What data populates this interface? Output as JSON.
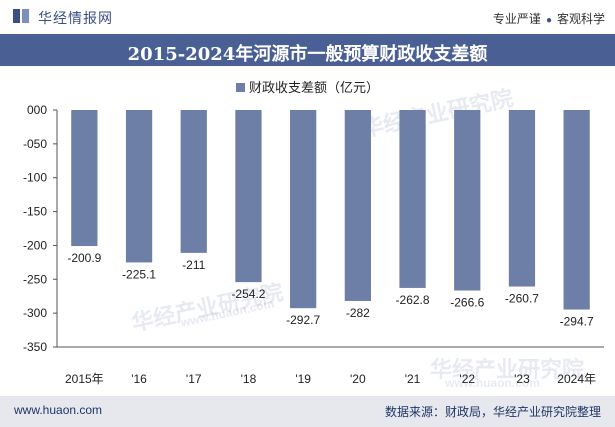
{
  "header": {
    "brand": "华经情报网",
    "slogan_left": "专业严谨",
    "slogan_right": "客观科学"
  },
  "title": "2015-2024年河源市一般预算财政收支差额",
  "legend": "财政收支差额（亿元）",
  "footer": {
    "site": "www.huaon.com",
    "source": "数据来源：财政局，华经产业研究院整理"
  },
  "watermark": {
    "cn": "华经产业研究院",
    "en": "www.huaon.com"
  },
  "colors": {
    "bar": "#6d7fa6",
    "title_bg": "#4a5f94",
    "footer_bg": "#e6e8ee"
  },
  "chart_data": {
    "type": "bar",
    "categories": [
      "2015年",
      "'16",
      "'17",
      "'18",
      "'19",
      "'20",
      "'21",
      "'22",
      "'23",
      "2024年"
    ],
    "series": [
      {
        "name": "财政收支差额（亿元）",
        "values": [
          -200.9,
          -225.1,
          -211,
          -254.2,
          -292.7,
          -282,
          -262.8,
          -266.6,
          -260.7,
          -294.7
        ]
      }
    ],
    "value_labels": [
      "-200.9",
      "-225.1",
      "-211",
      "-254.2",
      "-292.7",
      "-282",
      "-262.8",
      "-266.6",
      "-260.7",
      "-294.7"
    ],
    "y_ticks": [
      "000",
      "-050",
      "-100",
      "-150",
      "-200",
      "-250",
      "-300",
      "-350"
    ],
    "ylim": [
      -350,
      0
    ],
    "legend_position": "top-center",
    "grid": false
  }
}
